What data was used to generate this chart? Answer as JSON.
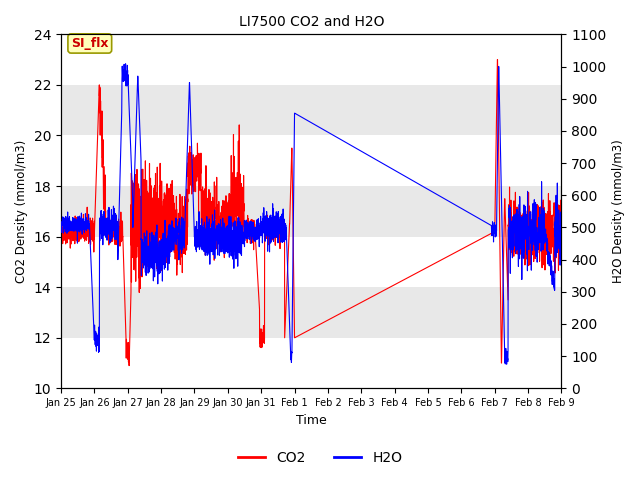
{
  "title": "LI7500 CO2 and H2O",
  "xlabel": "Time",
  "ylabel_left": "CO2 Density (mmol/m3)",
  "ylabel_right": "H2O Density (mmol/m3)",
  "ylim_left": [
    10,
    24
  ],
  "ylim_right": [
    0,
    1100
  ],
  "yticks_left": [
    10,
    12,
    14,
    16,
    18,
    20,
    22,
    24
  ],
  "yticks_right": [
    0,
    100,
    200,
    300,
    400,
    500,
    600,
    700,
    800,
    900,
    1000,
    1100
  ],
  "xtick_labels": [
    "Jan 25",
    "Jan 26",
    "Jan 27",
    "Jan 28",
    "Jan 29",
    "Jan 30",
    "Jan 31",
    "Feb 1",
    "Feb 2",
    "Feb 3",
    "Feb 4",
    "Feb 5",
    "Feb 6",
    "Feb 7",
    "Feb 8",
    "Feb 9"
  ],
  "legend_label_co2": "CO2",
  "legend_label_h2o": "H2O",
  "annotation_text": "SI_flx",
  "background_color": "#e8e8e8",
  "grid_color": "#ffffff",
  "co2_color": "#ff0000",
  "h2o_color": "#0000ff",
  "line_width": 0.8
}
